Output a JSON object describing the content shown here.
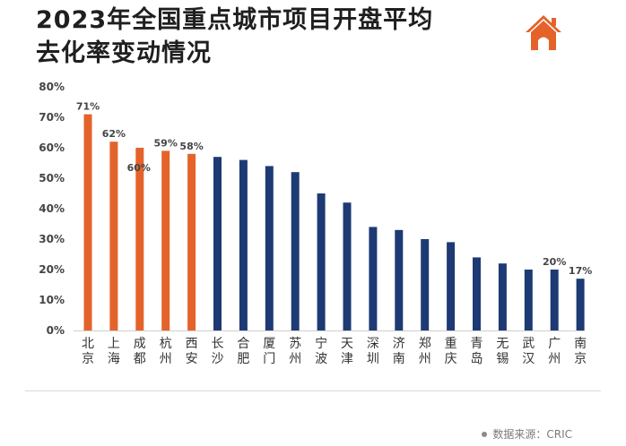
{
  "header": {
    "title_line1": "2023年全国重点城市项目开盘平均",
    "title_line2": "去化率变动情况",
    "logo_icon": "house-icon"
  },
  "footer": {
    "source": "数据来源：CRIC"
  },
  "colors": {
    "highlight": "#e4632b",
    "normal": "#1e3a74",
    "title": "#1f1f1f"
  },
  "chart_data": {
    "type": "bar",
    "title": "2023年全国重点城市项目开盘平均去化率变动情况",
    "ylim": [
      0,
      80
    ],
    "yticks": [
      "0%",
      "10%",
      "20%",
      "30%",
      "40%",
      "50%",
      "60%",
      "70%",
      "80%"
    ],
    "grid": false,
    "categories": [
      "北京",
      "上海",
      "成都",
      "杭州",
      "西安",
      "长沙",
      "合肥",
      "厦门",
      "苏州",
      "宁波",
      "天津",
      "深圳",
      "济南",
      "郑州",
      "重庆",
      "青岛",
      "无锡",
      "武汉",
      "广州",
      "南京"
    ],
    "values": [
      71,
      62,
      60,
      59,
      58,
      57,
      56,
      54,
      52,
      45,
      42,
      34,
      33,
      30,
      29,
      24,
      22,
      20,
      20,
      17
    ],
    "highlighted": [
      true,
      true,
      true,
      true,
      true,
      false,
      false,
      false,
      false,
      false,
      false,
      false,
      false,
      false,
      false,
      false,
      false,
      false,
      false,
      false
    ],
    "data_labels": [
      "71%",
      "62%",
      "60%",
      "59%",
      "58%",
      "",
      "",
      "",
      "",
      "",
      "",
      "",
      "",
      "",
      "",
      "",
      "",
      "",
      "20%",
      "17%"
    ]
  }
}
